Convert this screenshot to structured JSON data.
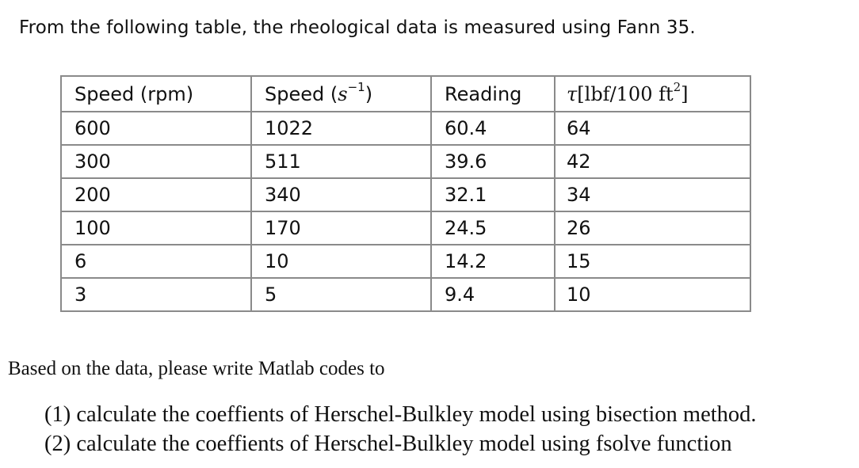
{
  "intro": "From the following table, the rheological data is measured using Fann 35.",
  "table": {
    "headers": {
      "speed_rpm": "Speed (rpm)",
      "speed_s_prefix": "Speed (",
      "speed_s_var": "s",
      "speed_s_exp": "−1",
      "speed_s_suffix": ")",
      "reading": "Reading",
      "tau_symbol": "τ",
      "tau_unit": "[lbf/100 ft",
      "tau_exp": "2",
      "tau_close": "]"
    },
    "rows": [
      [
        "600",
        "1022",
        "60.4",
        "64"
      ],
      [
        "300",
        "511",
        "39.6",
        "42"
      ],
      [
        "200",
        "340",
        "32.1",
        "34"
      ],
      [
        "100",
        "170",
        "24.5",
        "26"
      ],
      [
        "6",
        "10",
        "14.2",
        "15"
      ],
      [
        "3",
        "5",
        "9.4",
        "10"
      ]
    ]
  },
  "prompt": "Based on the data, please write Matlab codes to",
  "tasks": [
    "(1) calculate the coeffients of Herschel-Bulkley model using bisection method.",
    "(2) calculate the coeffients of Herschel-Bulkley model using fsolve function"
  ]
}
